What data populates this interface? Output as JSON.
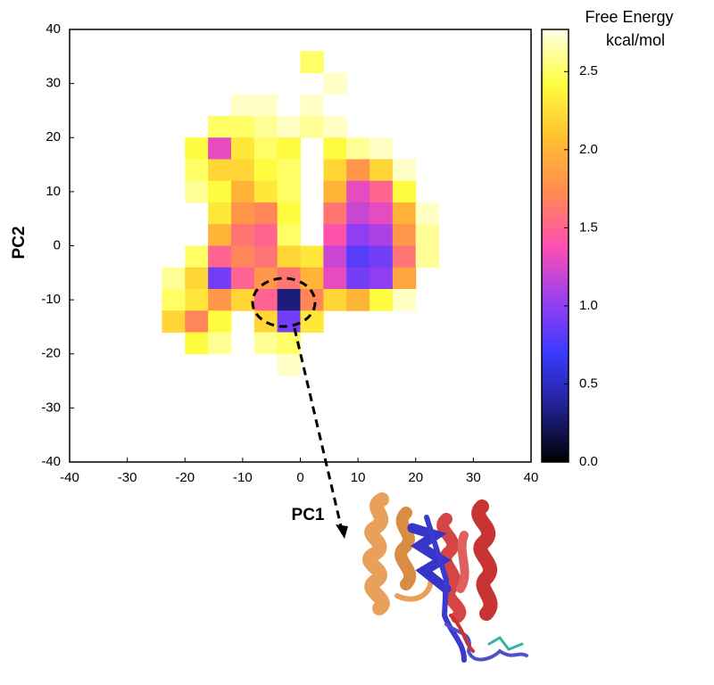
{
  "chart_data": {
    "type": "heatmap",
    "xlabel": "PC1",
    "ylabel": "PC2",
    "colorbar_label": [
      "Free Energy",
      "kcal/mol"
    ],
    "xlim": [
      -40,
      40
    ],
    "ylim": [
      -40,
      40
    ],
    "xticks": [
      -40,
      -30,
      -20,
      -10,
      0,
      10,
      20,
      30,
      40
    ],
    "yticks": [
      -40,
      -30,
      -20,
      -10,
      0,
      10,
      20,
      30,
      40
    ],
    "clim": [
      0,
      2.77
    ],
    "cticks": [
      {
        "value": 0,
        "label": "0.0"
      },
      0.5,
      {
        "value": 1,
        "label": "1.0"
      },
      1.5,
      {
        "value": 2,
        "label": "2.0"
      },
      2.5
    ],
    "colormap": [
      "#000000",
      "#20208e",
      "#3a3aff",
      "#9a3ff0",
      "#ff4fb0",
      "#ff8c50",
      "#ffc030",
      "#ffff40",
      "#ffffe8"
    ],
    "x": [
      -22,
      -18,
      -14,
      -10,
      -6,
      -2,
      2,
      6,
      10,
      14,
      18,
      22
    ],
    "y": [
      34,
      30,
      26,
      22,
      18,
      14,
      10,
      6,
      2,
      -2,
      -6,
      -10,
      -14,
      -18,
      -22
    ],
    "z": [
      [
        null,
        null,
        null,
        null,
        null,
        null,
        2.5,
        null,
        null,
        null,
        null,
        null
      ],
      [
        null,
        null,
        null,
        null,
        null,
        null,
        null,
        2.7,
        null,
        null,
        null,
        null
      ],
      [
        null,
        null,
        null,
        2.7,
        2.7,
        null,
        2.7,
        null,
        null,
        null,
        null,
        null
      ],
      [
        null,
        null,
        2.5,
        2.5,
        2.6,
        2.7,
        2.6,
        2.7,
        null,
        null,
        null,
        null
      ],
      [
        null,
        2.4,
        1.3,
        2.3,
        2.5,
        2.4,
        null,
        2.4,
        2.6,
        2.7,
        null,
        null
      ],
      [
        null,
        2.5,
        2.2,
        2.2,
        2.4,
        2.5,
        null,
        2.2,
        1.8,
        2.2,
        2.7,
        null
      ],
      [
        null,
        2.6,
        2.4,
        2.0,
        2.3,
        2.5,
        null,
        2.0,
        1.3,
        1.5,
        2.4,
        null
      ],
      [
        null,
        null,
        2.3,
        1.8,
        1.7,
        2.4,
        null,
        1.6,
        1.2,
        1.3,
        2.0,
        2.7
      ],
      [
        null,
        null,
        2.0,
        1.6,
        1.5,
        2.5,
        null,
        1.4,
        1.0,
        1.1,
        1.8,
        2.6
      ],
      [
        null,
        2.5,
        1.5,
        1.7,
        1.6,
        2.2,
        2.3,
        1.2,
        0.8,
        0.9,
        1.6,
        2.6
      ],
      [
        2.6,
        2.2,
        0.9,
        1.5,
        1.8,
        1.6,
        2.0,
        1.3,
        0.9,
        1.0,
        1.9,
        null
      ],
      [
        2.5,
        2.3,
        1.8,
        2.2,
        1.5,
        0.3,
        1.7,
        2.2,
        2.0,
        2.4,
        2.7,
        null
      ],
      [
        2.2,
        1.7,
        2.4,
        null,
        2.2,
        0.9,
        2.3,
        null,
        null,
        null,
        null,
        null
      ],
      [
        null,
        2.4,
        2.6,
        null,
        2.6,
        2.5,
        null,
        null,
        null,
        null,
        null,
        null
      ],
      [
        null,
        null,
        null,
        null,
        null,
        2.7,
        null,
        null,
        null,
        null,
        null,
        null
      ]
    ]
  }
}
